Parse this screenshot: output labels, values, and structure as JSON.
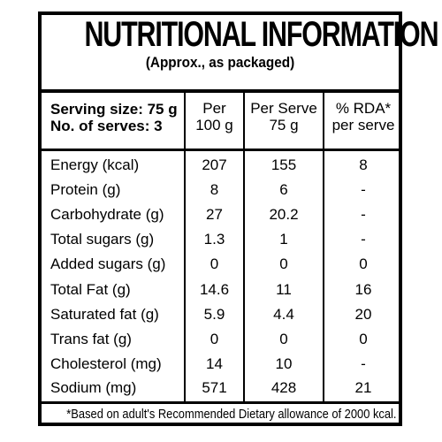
{
  "title": "NUTRITIONAL INFORMATION",
  "subtitle": "(Approx., as packaged)",
  "serving": {
    "size_label": "Serving size: 75 g",
    "serves_label": "No. of serves: 3"
  },
  "columns": {
    "per100": [
      "Per",
      "100 g"
    ],
    "perserve": [
      "Per Serve",
      "75 g"
    ],
    "rda": [
      "% RDA*",
      "per serve"
    ]
  },
  "rows": [
    {
      "name": "Energy (kcal)",
      "per100": "207",
      "perserve": "155",
      "rda": "8"
    },
    {
      "name": "Protein (g)",
      "per100": "8",
      "perserve": "6",
      "rda": "-"
    },
    {
      "name": "Carbohydrate (g)",
      "per100": "27",
      "perserve": "20.2",
      "rda": "-"
    },
    {
      "name": "Total sugars (g)",
      "per100": "1.3",
      "perserve": "1",
      "rda": "-"
    },
    {
      "name": "Added sugars (g)",
      "per100": "0",
      "perserve": "0",
      "rda": "0"
    },
    {
      "name": "Total Fat (g)",
      "per100": "14.6",
      "perserve": "11",
      "rda": "16"
    },
    {
      "name": "Saturated fat (g)",
      "per100": "5.9",
      "perserve": "4.4",
      "rda": "20"
    },
    {
      "name": "Trans fat (g)",
      "per100": "0",
      "perserve": "0",
      "rda": "0"
    },
    {
      "name": "Cholesterol (mg)",
      "per100": "14",
      "perserve": "10",
      "rda": "-"
    },
    {
      "name": "Sodium (mg)",
      "per100": "571",
      "perserve": "428",
      "rda": "21"
    }
  ],
  "footnote": "*Based on adult's Recommended Dietary allowance of 2000 kcal."
}
